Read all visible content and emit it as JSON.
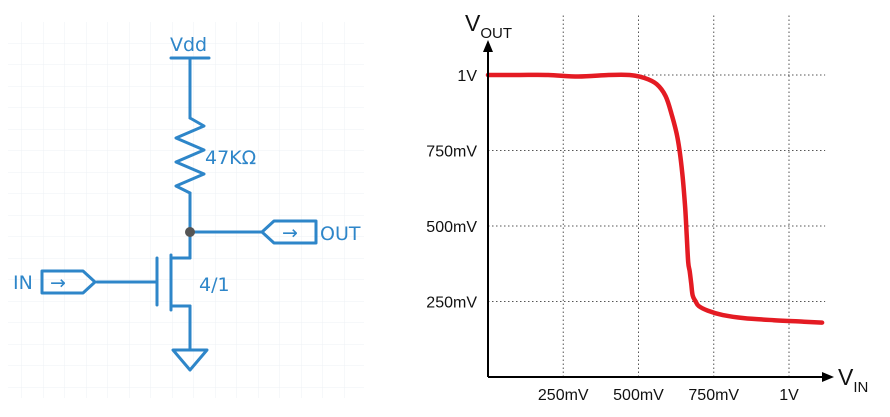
{
  "schematic": {
    "supply_label": "Vdd",
    "resistor_label": "47KΩ",
    "transistor_label": "4/1",
    "input_label": "IN",
    "output_label": "OUT",
    "arrow_glyph": "→",
    "wire_color": "#2e86c9",
    "grid_color": "#eef0f4",
    "node_color": "#555555"
  },
  "chart_data": {
    "type": "line",
    "xlabel_main": "V",
    "xlabel_sub": "IN",
    "ylabel_main": "V",
    "ylabel_sub": "OUT",
    "x_ticks": [
      {
        "value": 0.25,
        "label": "250mV"
      },
      {
        "value": 0.5,
        "label": "500mV"
      },
      {
        "value": 0.75,
        "label": "750mV"
      },
      {
        "value": 1.0,
        "label": "1V"
      }
    ],
    "y_ticks": [
      {
        "value": 0.25,
        "label": "250mV"
      },
      {
        "value": 0.5,
        "label": "500mV"
      },
      {
        "value": 0.75,
        "label": "750mV"
      },
      {
        "value": 1.0,
        "label": "1V"
      }
    ],
    "xlim": [
      0,
      1.12
    ],
    "ylim": [
      0,
      1.2
    ],
    "grid": true,
    "series": [
      {
        "color": "#e41b23",
        "x": [
          0,
          0.1,
          0.2,
          0.3,
          0.4,
          0.47,
          0.52,
          0.56,
          0.59,
          0.61,
          0.63,
          0.645,
          0.655,
          0.66,
          0.665,
          0.67,
          0.675,
          0.68,
          0.69,
          0.7,
          0.73,
          0.78,
          0.85,
          0.95,
          1.05,
          1.11
        ],
        "y": [
          1.0,
          1.0,
          1.0,
          0.995,
          1.0,
          1.0,
          0.99,
          0.97,
          0.93,
          0.87,
          0.79,
          0.68,
          0.56,
          0.47,
          0.38,
          0.35,
          0.31,
          0.27,
          0.25,
          0.235,
          0.22,
          0.205,
          0.195,
          0.188,
          0.183,
          0.18
        ]
      }
    ]
  }
}
